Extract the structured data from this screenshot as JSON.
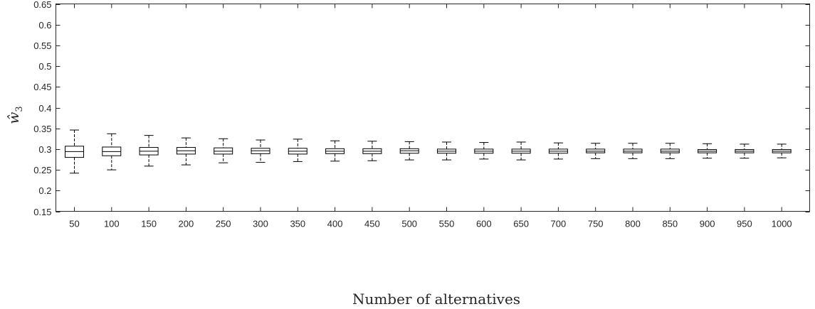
{
  "chart_data": {
    "type": "boxplot",
    "xlabel": "Number of alternatives",
    "ylabel_base": "ŵ",
    "ylabel_sub": "3",
    "ylim": [
      0.15,
      0.65
    ],
    "yticks": [
      "0.15",
      "0.2",
      "0.25",
      "0.3",
      "0.35",
      "0.4",
      "0.45",
      "0.5",
      "0.55",
      "0.6",
      "0.65"
    ],
    "ytick_values": [
      0.15,
      0.2,
      0.25,
      0.3,
      0.35,
      0.4,
      0.45,
      0.5,
      0.55,
      0.6,
      0.65
    ],
    "categories": [
      "50",
      "100",
      "150",
      "200",
      "250",
      "300",
      "350",
      "400",
      "450",
      "500",
      "550",
      "600",
      "650",
      "700",
      "750",
      "800",
      "850",
      "900",
      "950",
      "1000"
    ],
    "boxes": [
      {
        "whisker_low": 0.242,
        "q1": 0.28,
        "median": 0.294,
        "q3": 0.307,
        "whisker_high": 0.346
      },
      {
        "whisker_low": 0.25,
        "q1": 0.284,
        "median": 0.294,
        "q3": 0.305,
        "whisker_high": 0.337
      },
      {
        "whisker_low": 0.259,
        "q1": 0.286,
        "median": 0.295,
        "q3": 0.304,
        "whisker_high": 0.333
      },
      {
        "whisker_low": 0.262,
        "q1": 0.288,
        "median": 0.296,
        "q3": 0.304,
        "whisker_high": 0.327
      },
      {
        "whisker_low": 0.267,
        "q1": 0.288,
        "median": 0.295,
        "q3": 0.303,
        "whisker_high": 0.325
      },
      {
        "whisker_low": 0.268,
        "q1": 0.289,
        "median": 0.296,
        "q3": 0.302,
        "whisker_high": 0.322
      },
      {
        "whisker_low": 0.27,
        "q1": 0.288,
        "median": 0.295,
        "q3": 0.302,
        "whisker_high": 0.324
      },
      {
        "whisker_low": 0.271,
        "q1": 0.289,
        "median": 0.295,
        "q3": 0.301,
        "whisker_high": 0.32
      },
      {
        "whisker_low": 0.272,
        "q1": 0.289,
        "median": 0.295,
        "q3": 0.301,
        "whisker_high": 0.319
      },
      {
        "whisker_low": 0.274,
        "q1": 0.29,
        "median": 0.296,
        "q3": 0.301,
        "whisker_high": 0.318
      },
      {
        "whisker_low": 0.274,
        "q1": 0.29,
        "median": 0.295,
        "q3": 0.3,
        "whisker_high": 0.317
      },
      {
        "whisker_low": 0.276,
        "q1": 0.29,
        "median": 0.295,
        "q3": 0.3,
        "whisker_high": 0.316
      },
      {
        "whisker_low": 0.274,
        "q1": 0.29,
        "median": 0.295,
        "q3": 0.3,
        "whisker_high": 0.317
      },
      {
        "whisker_low": 0.276,
        "q1": 0.29,
        "median": 0.295,
        "q3": 0.3,
        "whisker_high": 0.315
      },
      {
        "whisker_low": 0.277,
        "q1": 0.291,
        "median": 0.295,
        "q3": 0.3,
        "whisker_high": 0.314
      },
      {
        "whisker_low": 0.277,
        "q1": 0.291,
        "median": 0.295,
        "q3": 0.3,
        "whisker_high": 0.314
      },
      {
        "whisker_low": 0.277,
        "q1": 0.291,
        "median": 0.295,
        "q3": 0.3,
        "whisker_high": 0.314
      },
      {
        "whisker_low": 0.278,
        "q1": 0.291,
        "median": 0.295,
        "q3": 0.299,
        "whisker_high": 0.313
      },
      {
        "whisker_low": 0.278,
        "q1": 0.291,
        "median": 0.295,
        "q3": 0.299,
        "whisker_high": 0.312
      },
      {
        "whisker_low": 0.279,
        "q1": 0.291,
        "median": 0.295,
        "q3": 0.299,
        "whisker_high": 0.312
      }
    ],
    "grid": false,
    "legend": "none"
  }
}
